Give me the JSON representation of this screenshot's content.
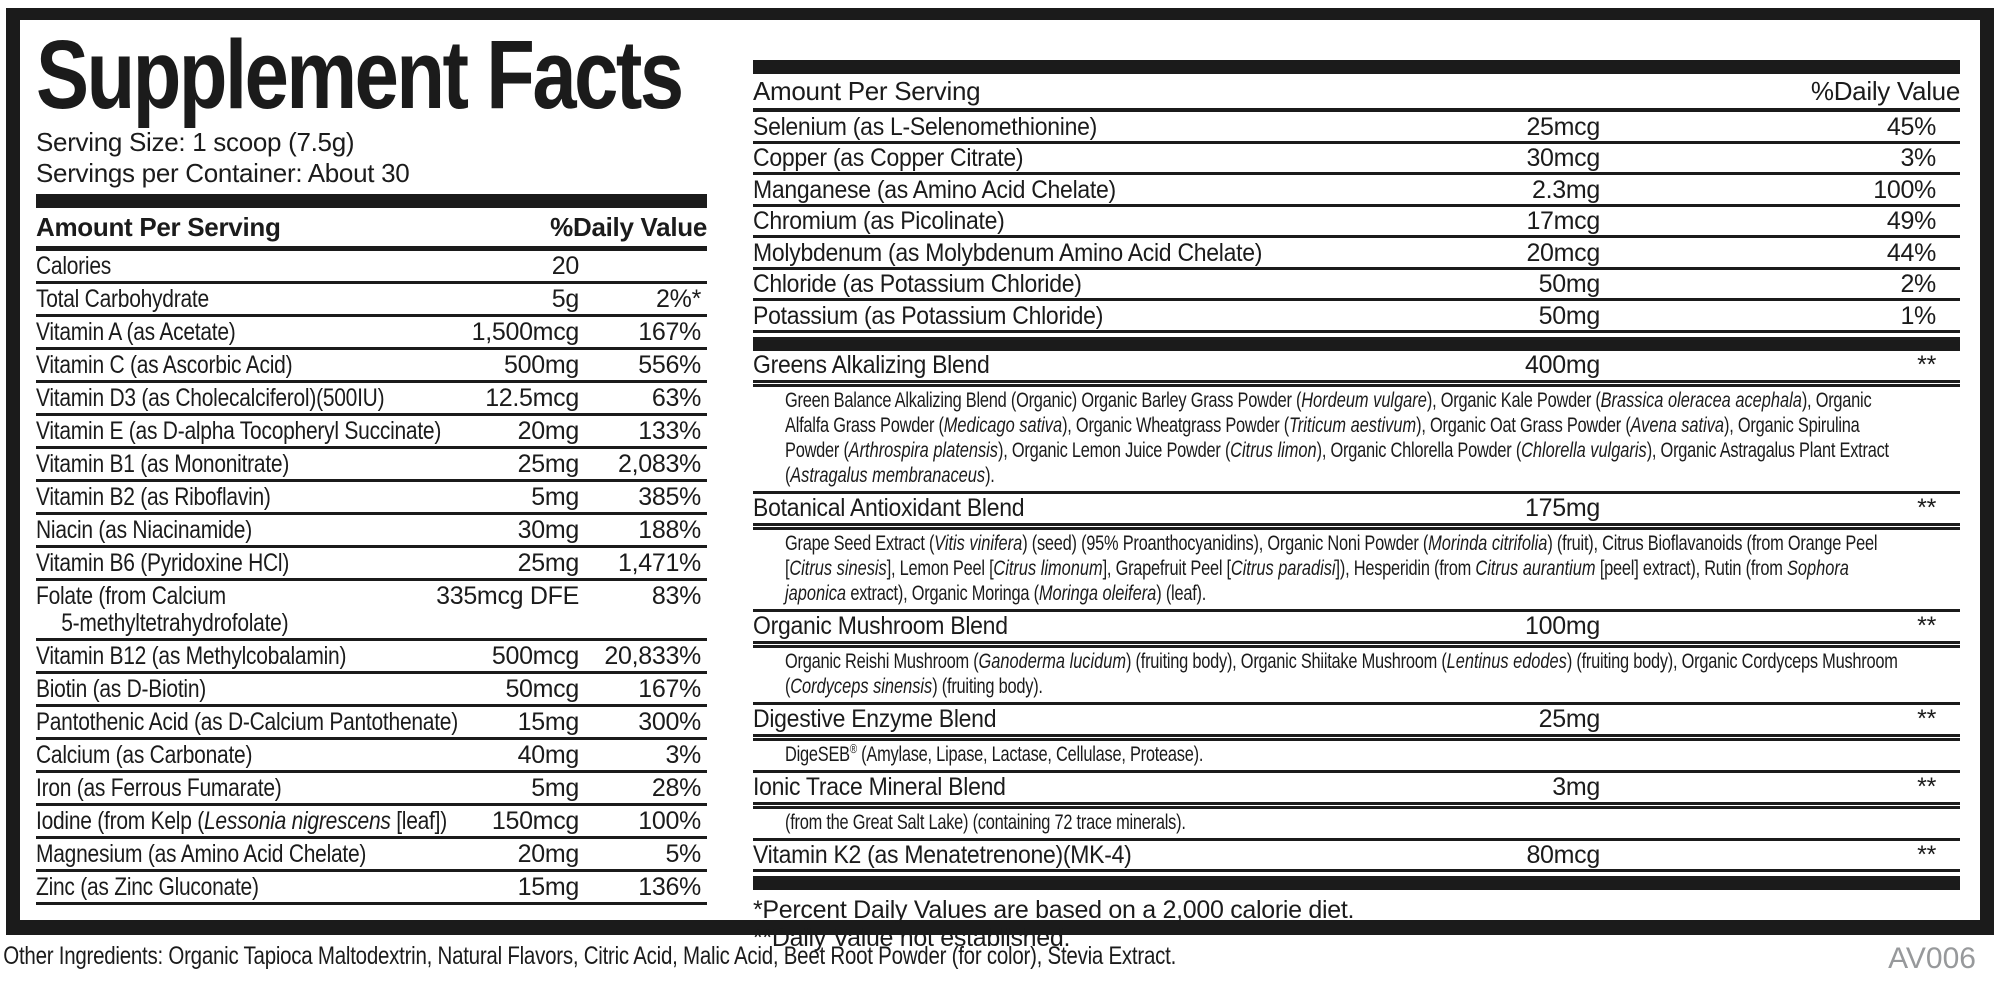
{
  "title": "Supplement Facts",
  "serving_size": "Serving Size: 1 scoop (7.5g)",
  "servings_per_container": "Servings per Container: About 30",
  "columns": {
    "header_amount": "Amount Per Serving",
    "header_dv": "%Daily Value"
  },
  "left_rows": [
    {
      "name": [
        {
          "t": "Calories"
        }
      ],
      "amount": "20",
      "dv": ""
    },
    {
      "name": [
        {
          "t": "Total Carbohydrate"
        }
      ],
      "amount": "5g",
      "dv": "2%*"
    },
    {
      "name": [
        {
          "t": "Vitamin A (as Acetate)"
        }
      ],
      "amount": "1,500mcg",
      "dv": "167%"
    },
    {
      "name": [
        {
          "t": "Vitamin C (as Ascorbic Acid)"
        }
      ],
      "amount": "500mg",
      "dv": "556%"
    },
    {
      "name": [
        {
          "t": "Vitamin D3 (as Cholecalciferol)(500IU)"
        }
      ],
      "amount": "12.5mcg",
      "dv": "63%"
    },
    {
      "name": [
        {
          "t": "Vitamin E (as D-alpha Tocopheryl Succinate)"
        }
      ],
      "amount": "20mg",
      "dv": "133%"
    },
    {
      "name": [
        {
          "t": "Vitamin B1 (as Mononitrate)"
        }
      ],
      "amount": "25mg",
      "dv": "2,083%"
    },
    {
      "name": [
        {
          "t": "Vitamin B2 (as Riboflavin)"
        }
      ],
      "amount": "5mg",
      "dv": "385%"
    },
    {
      "name": [
        {
          "t": "Niacin (as Niacinamide)"
        }
      ],
      "amount": "30mg",
      "dv": "188%"
    },
    {
      "name": [
        {
          "t": "Vitamin B6 (Pyridoxine HCl)"
        }
      ],
      "amount": "25mg",
      "dv": "1,471%"
    },
    {
      "name": [
        {
          "t": "Folate (from Calcium"
        },
        {
          "br": true
        },
        {
          "t": "5-methyltetrahydrofolate)",
          "ind": true
        }
      ],
      "amount": "335mcg DFE",
      "dv": "83%"
    },
    {
      "name": [
        {
          "t": "Vitamin B12 (as Methylcobalamin)"
        }
      ],
      "amount": "500mcg",
      "dv": "20,833%"
    },
    {
      "name": [
        {
          "t": "Biotin (as D-Biotin)"
        }
      ],
      "amount": "50mcg",
      "dv": "167%"
    },
    {
      "name": [
        {
          "t": "Pantothenic Acid (as D-Calcium Pantothenate)"
        }
      ],
      "amount": "15mg",
      "dv": "300%"
    },
    {
      "name": [
        {
          "t": "Calcium (as Carbonate)"
        }
      ],
      "amount": "40mg",
      "dv": "3%"
    },
    {
      "name": [
        {
          "t": "Iron (as Ferrous Fumarate)"
        }
      ],
      "amount": "5mg",
      "dv": "28%"
    },
    {
      "name": [
        {
          "t": "Iodine (from Kelp ("
        },
        {
          "t": "Lessonia nigrescens",
          "i": true
        },
        {
          "t": " [leaf])"
        }
      ],
      "amount": "150mcg",
      "dv": "100%"
    },
    {
      "name": [
        {
          "t": "Magnesium (as Amino Acid Chelate)"
        }
      ],
      "amount": "20mg",
      "dv": "5%"
    },
    {
      "name": [
        {
          "t": "Zinc (as Zinc Gluconate)"
        }
      ],
      "amount": "15mg",
      "dv": "136%"
    }
  ],
  "right_rows": [
    {
      "name": [
        {
          "t": "Selenium (as L-Selenomethionine)"
        }
      ],
      "amount": "25mcg",
      "dv": "45%"
    },
    {
      "name": [
        {
          "t": "Copper (as Copper Citrate)"
        }
      ],
      "amount": "30mcg",
      "dv": "3%"
    },
    {
      "name": [
        {
          "t": "Manganese (as Amino Acid Chelate)"
        }
      ],
      "amount": "2.3mg",
      "dv": "100%"
    },
    {
      "name": [
        {
          "t": "Chromium (as Picolinate)"
        }
      ],
      "amount": "17mcg",
      "dv": "49%"
    },
    {
      "name": [
        {
          "t": "Molybdenum (as Molybdenum Amino Acid Chelate)"
        }
      ],
      "amount": "20mcg",
      "dv": "44%"
    },
    {
      "name": [
        {
          "t": "Chloride (as Potassium Chloride)"
        }
      ],
      "amount": "50mg",
      "dv": "2%"
    },
    {
      "name": [
        {
          "t": "Potassium (as Potassium Chloride)"
        }
      ],
      "amount": "50mg",
      "dv": "1%"
    }
  ],
  "blends": [
    {
      "name": [
        {
          "t": "Greens Alkalizing Blend"
        }
      ],
      "amount": "400mg",
      "dv": "**",
      "desc": [
        {
          "t": "Green Balance Alkalizing Blend (Organic) Organic Barley Grass Powder ("
        },
        {
          "t": "Hordeum vulgare",
          "i": true
        },
        {
          "t": "), Organic Kale Powder ("
        },
        {
          "t": "Brassica oleracea acephala",
          "i": true
        },
        {
          "t": "), Organic Alfalfa Grass Powder ("
        },
        {
          "t": "Medicago sativa",
          "i": true
        },
        {
          "t": "), Organic Wheatgrass Powder ("
        },
        {
          "t": "Triticum aestivum",
          "i": true
        },
        {
          "t": "), Organic Oat Grass Powder ("
        },
        {
          "t": "Avena sativa",
          "i": true
        },
        {
          "t": "), Organic Spirulina Powder ("
        },
        {
          "t": "Arthrospira platensis",
          "i": true
        },
        {
          "t": "), Organic Lemon Juice Powder ("
        },
        {
          "t": "Citrus limon",
          "i": true
        },
        {
          "t": "), Organic Chlorella Powder ("
        },
        {
          "t": "Chlorella vulgaris",
          "i": true
        },
        {
          "t": "), Organic Astragalus Plant Extract ("
        },
        {
          "t": "Astragalus membranaceus",
          "i": true
        },
        {
          "t": ")."
        }
      ]
    },
    {
      "name": [
        {
          "t": "Botanical Antioxidant Blend"
        }
      ],
      "amount": "175mg",
      "dv": "**",
      "desc": [
        {
          "t": "Grape Seed Extract ("
        },
        {
          "t": "Vitis vinifera",
          "i": true
        },
        {
          "t": ") (seed) (95% Proanthocyanidins), Organic Noni Powder ("
        },
        {
          "t": "Morinda citrifolia",
          "i": true
        },
        {
          "t": ") (fruit), Citrus Bioflavanoids (from Orange Peel ["
        },
        {
          "t": "Citrus sinesis",
          "i": true
        },
        {
          "t": "], Lemon Peel ["
        },
        {
          "t": "Citrus limonum",
          "i": true
        },
        {
          "t": "], Grapefruit Peel ["
        },
        {
          "t": "Citrus paradisi",
          "i": true
        },
        {
          "t": "]), Hesperidin (from "
        },
        {
          "t": "Citrus aurantium",
          "i": true
        },
        {
          "t": " [peel] extract), Rutin (from "
        },
        {
          "t": "Sophora japonica",
          "i": true
        },
        {
          "t": " extract), Organic Moringa ("
        },
        {
          "t": "Moringa oleifera",
          "i": true
        },
        {
          "t": ") (leaf)."
        }
      ]
    },
    {
      "name": [
        {
          "t": "Organic Mushroom Blend"
        }
      ],
      "amount": "100mg",
      "dv": "**",
      "desc": [
        {
          "t": "Organic Reishi Mushroom ("
        },
        {
          "t": "Ganoderma lucidum",
          "i": true
        },
        {
          "t": ") (fruiting body), Organic Shiitake Mushroom ("
        },
        {
          "t": "Lentinus edodes",
          "i": true
        },
        {
          "t": ") (fruiting body), Organic Cordyceps Mushroom ("
        },
        {
          "t": "Cordyceps sinensis",
          "i": true
        },
        {
          "t": ") (fruiting body)."
        }
      ]
    },
    {
      "name": [
        {
          "t": "Digestive Enzyme Blend"
        }
      ],
      "amount": "25mg",
      "dv": "**",
      "desc": [
        {
          "t": "DigeSEB"
        },
        {
          "t": "®",
          "sup": true
        },
        {
          "t": " (Amylase, Lipase, Lactase, Cellulase, Protease)."
        }
      ]
    },
    {
      "name": [
        {
          "t": "Ionic Trace Mineral Blend"
        }
      ],
      "amount": "3mg",
      "dv": "**",
      "desc": [
        {
          "t": "(from the Great Salt Lake) (containing 72 trace minerals)."
        }
      ]
    }
  ],
  "right_rows2": [
    {
      "name": [
        {
          "t": "Vitamin K2 (as Menatetrenone)(MK-4)"
        }
      ],
      "amount": "80mcg",
      "dv": "**"
    }
  ],
  "footnotes": [
    {
      "text": "*Percent Daily Values are based on a 2,000 calorie diet."
    },
    {
      "text": "**Daily Value not established."
    }
  ],
  "footer": {
    "other_ingredients": "Other Ingredients: Organic Tapioca Maltodextrin, Natural Flavors, Citric Acid, Malic Acid, Beet Root Powder (for color), Stevia Extract.",
    "code": "AV006"
  },
  "colors": {
    "ink": "#1b1b1b",
    "code_gray": "#97999b"
  }
}
